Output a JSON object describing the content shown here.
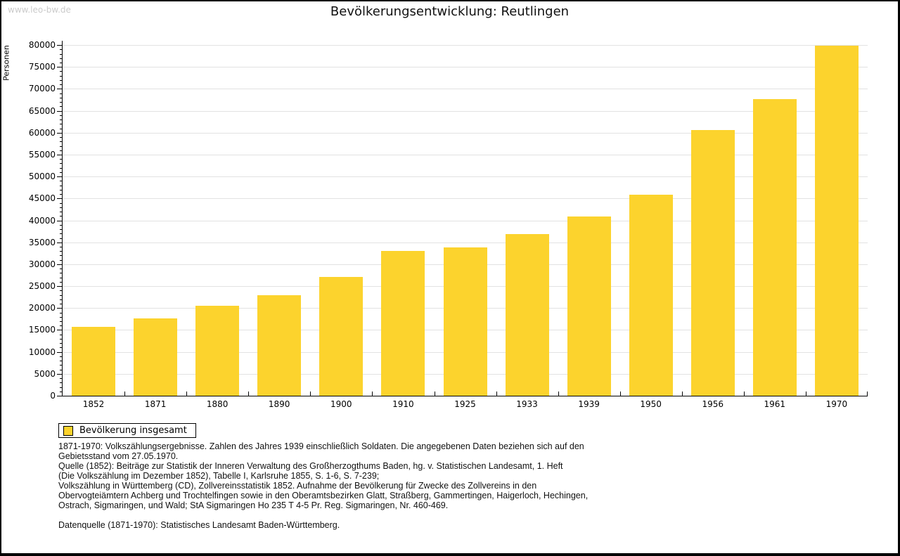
{
  "page": {
    "watermark": "www.leo-bw.de",
    "title": "Bevölkerungsentwicklung: Reutlingen"
  },
  "chart_data": {
    "type": "bar",
    "title": "Bevölkerungsentwicklung: Reutlingen",
    "xlabel": "",
    "ylabel": "Personen",
    "categories": [
      "1852",
      "1871",
      "1880",
      "1890",
      "1900",
      "1910",
      "1925",
      "1933",
      "1939",
      "1950",
      "1956",
      "1961",
      "1970"
    ],
    "series": [
      {
        "name": "Bevölkerung insgesamt",
        "values": [
          15700,
          17700,
          20500,
          22900,
          27100,
          33100,
          33900,
          36900,
          40900,
          45800,
          60600,
          67600,
          79800
        ]
      }
    ],
    "ylim": [
      0,
      80000
    ],
    "y_major_step": 5000,
    "y_minor_step": 1000,
    "grid": true,
    "legend_position": "bottom-left",
    "bar_color": "#FCD32D"
  },
  "legend": {
    "label": "Bevölkerung insgesamt",
    "swatch_color": "#FCD32D"
  },
  "notes": [
    "1871-1970: Volkszählungsergebnisse. Zahlen des Jahres 1939 einschließlich Soldaten. Die angegebenen Daten beziehen sich auf den",
    "Gebietsstand vom 27.05.1970.",
    "Quelle (1852): Beiträge zur Statistik der Inneren Verwaltung des Großherzogthums Baden, hg. v. Statistischen Landesamt, 1. Heft",
    "(Die Volkszählung im Dezember 1852), Tabelle I, Karlsruhe 1855, S. 1-6, S. 7-239;",
    "Volkszählung in Württemberg (CD), Zollvereinsstatistik 1852. Aufnahme der Bevölkerung für Zwecke des Zollvereins in den",
    "Obervogteiämtern Achberg und Trochtelfingen sowie in den Oberamtsbezirken Glatt, Straßberg, Gammertingen, Haigerloch, Hechingen,",
    "Ostrach, Sigmaringen, und Wald; StA Sigmaringen Ho 235 T 4-5 Pr. Reg. Sigmaringen, Nr. 460-469.",
    "",
    "Datenquelle (1871-1970): Statistisches Landesamt Baden-Württemberg."
  ],
  "colors": {
    "bar": "#FCD32D",
    "grid": "#e2e2e2",
    "axis": "#000000",
    "watermark": "#cbcbcb"
  }
}
